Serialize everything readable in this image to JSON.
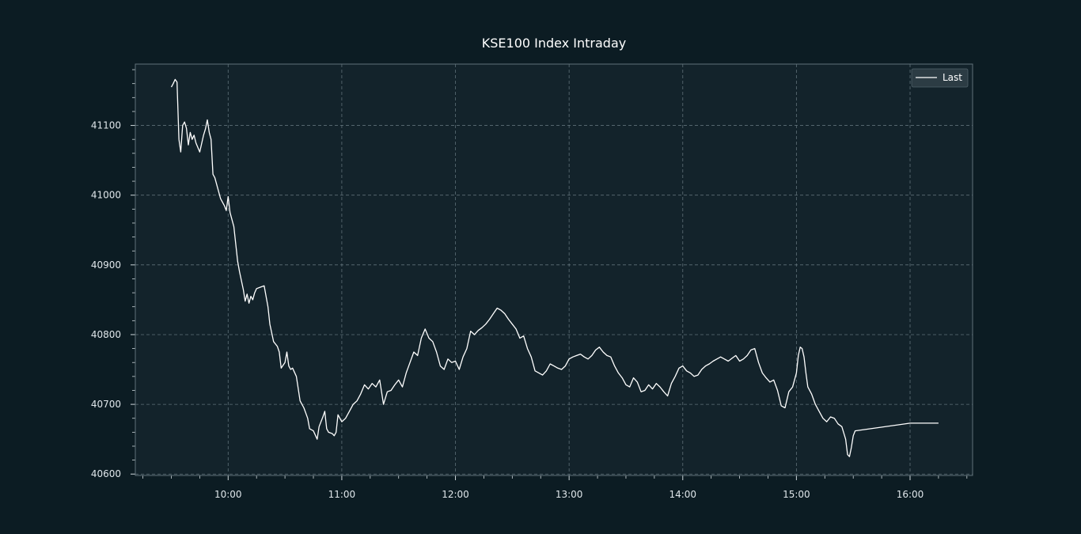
{
  "chart_data": {
    "type": "line",
    "title": "KSE100 Index Intraday",
    "xlabel": "",
    "ylabel": "",
    "x_ticks": [
      "10:00",
      "11:00",
      "12:00",
      "13:00",
      "14:00",
      "15:00",
      "16:00"
    ],
    "y_ticks": [
      "40600",
      "40700",
      "40800",
      "40900",
      "41000",
      "41100"
    ],
    "xlim": [
      "09:11",
      "16:33"
    ],
    "ylim": [
      40598,
      41188
    ],
    "grid": true,
    "legend": {
      "placement": "top-right",
      "entries": [
        "Last"
      ]
    },
    "colors": {
      "background": "#0c1c23",
      "plot_area": "#13232b",
      "line": "#ffffff",
      "grid": "#5f7078",
      "frame": "#5f7078"
    },
    "series": [
      {
        "name": "Last",
        "x": [
          "09:30",
          "09:31",
          "09:32",
          "09:33",
          "09:34",
          "09:35",
          "09:36",
          "09:37",
          "09:38",
          "09:39",
          "09:40",
          "09:41",
          "09:42",
          "09:43",
          "09:45",
          "09:47",
          "09:48",
          "09:49",
          "09:50",
          "09:51",
          "09:52",
          "09:53",
          "09:55",
          "09:56",
          "09:58",
          "09:59",
          "10:00",
          "10:01",
          "10:03",
          "10:04",
          "10:05",
          "10:06",
          "10:08",
          "10:09",
          "10:10",
          "10:11",
          "10:12",
          "10:13",
          "10:14",
          "10:15",
          "10:17",
          "10:19",
          "10:21",
          "10:22",
          "10:24",
          "10:26",
          "10:27",
          "10:28",
          "10:30",
          "10:31",
          "10:32",
          "10:33",
          "10:34",
          "10:36",
          "10:38",
          "10:40",
          "10:42",
          "10:43",
          "10:45",
          "10:47",
          "10:48",
          "10:50",
          "10:51",
          "10:52",
          "10:53",
          "10:55",
          "10:56",
          "10:57",
          "10:58",
          "11:00",
          "11:02",
          "11:04",
          "11:06",
          "11:08",
          "11:10",
          "11:12",
          "11:14",
          "11:16",
          "11:18",
          "11:20",
          "11:22",
          "11:24",
          "11:26",
          "11:28",
          "11:30",
          "11:32",
          "11:34",
          "11:36",
          "11:38",
          "11:40",
          "11:42",
          "11:44",
          "11:46",
          "11:48",
          "11:50",
          "11:52",
          "11:54",
          "11:56",
          "11:58",
          "12:00",
          "12:02",
          "12:04",
          "12:06",
          "12:08",
          "12:10",
          "12:12",
          "12:14",
          "12:16",
          "12:18",
          "12:20",
          "12:22",
          "12:24",
          "12:26",
          "12:28",
          "12:30",
          "12:32",
          "12:34",
          "12:36",
          "12:38",
          "12:40",
          "12:42",
          "12:44",
          "12:46",
          "12:48",
          "12:50",
          "12:52",
          "12:54",
          "12:56",
          "12:58",
          "13:00",
          "13:02",
          "13:04",
          "13:06",
          "13:08",
          "13:10",
          "13:12",
          "13:14",
          "13:16",
          "13:18",
          "13:20",
          "13:22",
          "13:24",
          "13:26",
          "13:28",
          "13:30",
          "13:32",
          "13:34",
          "13:36",
          "13:38",
          "13:40",
          "13:42",
          "13:44",
          "13:46",
          "13:48",
          "13:50",
          "13:52",
          "13:54",
          "13:56",
          "13:58",
          "14:00",
          "14:02",
          "14:04",
          "14:06",
          "14:08",
          "14:10",
          "14:12",
          "14:14",
          "14:16",
          "14:18",
          "14:20",
          "14:22",
          "14:24",
          "14:26",
          "14:28",
          "14:30",
          "14:32",
          "14:34",
          "14:36",
          "14:38",
          "14:40",
          "14:42",
          "14:44",
          "14:46",
          "14:48",
          "14:50",
          "14:52",
          "14:54",
          "14:56",
          "14:58",
          "15:00",
          "15:01",
          "15:02",
          "15:03",
          "15:04",
          "15:05",
          "15:06",
          "15:08",
          "15:10",
          "15:12",
          "15:14",
          "15:16",
          "15:18",
          "15:20",
          "15:22",
          "15:24",
          "15:26",
          "15:27",
          "15:28",
          "15:29",
          "15:30",
          "15:31",
          "16:00",
          "16:15"
        ],
        "values": [
          41155,
          41160,
          41166,
          41162,
          41080,
          41062,
          41100,
          41105,
          41096,
          41072,
          41090,
          41080,
          41086,
          41075,
          41062,
          41086,
          41095,
          41108,
          41090,
          41080,
          41030,
          41025,
          41005,
          40995,
          40985,
          40978,
          40998,
          40975,
          40955,
          40930,
          40905,
          40890,
          40865,
          40848,
          40858,
          40845,
          40855,
          40850,
          40860,
          40866,
          40868,
          40870,
          40840,
          40815,
          40790,
          40783,
          40775,
          40752,
          40760,
          40775,
          40755,
          40750,
          40752,
          40740,
          40705,
          40695,
          40680,
          40665,
          40662,
          40650,
          40668,
          40682,
          40690,
          40665,
          40660,
          40658,
          40655,
          40660,
          40685,
          40675,
          40680,
          40690,
          40700,
          40705,
          40715,
          40728,
          40722,
          40730,
          40725,
          40735,
          40700,
          40718,
          40720,
          40728,
          40735,
          40725,
          40745,
          40760,
          40775,
          40770,
          40795,
          40808,
          40795,
          40790,
          40775,
          40755,
          40750,
          40765,
          40760,
          40762,
          40750,
          40768,
          40780,
          40805,
          40800,
          40806,
          40810,
          40815,
          40822,
          40830,
          40838,
          40835,
          40830,
          40822,
          40815,
          40808,
          40795,
          40798,
          40780,
          40768,
          40748,
          40745,
          40742,
          40748,
          40758,
          40755,
          40752,
          40750,
          40755,
          40765,
          40768,
          40770,
          40772,
          40768,
          40765,
          40770,
          40778,
          40782,
          40775,
          40770,
          40768,
          40755,
          40745,
          40738,
          40728,
          40725,
          40738,
          40732,
          40718,
          40720,
          40728,
          40722,
          40730,
          40725,
          40718,
          40712,
          40730,
          40740,
          40752,
          40755,
          40748,
          40745,
          40740,
          40742,
          40750,
          40755,
          40758,
          40762,
          40765,
          40768,
          40765,
          40762,
          40766,
          40770,
          40762,
          40765,
          40770,
          40778,
          40780,
          40760,
          40745,
          40738,
          40732,
          40735,
          40720,
          40698,
          40695,
          40718,
          40725,
          40745,
          40770,
          40782,
          40780,
          40768,
          40745,
          40725,
          40715,
          40700,
          40690,
          40680,
          40675,
          40682,
          40680,
          40672,
          40668,
          40650,
          40628,
          40625,
          40638,
          40655,
          40662,
          40673,
          40673
        ]
      }
    ]
  }
}
